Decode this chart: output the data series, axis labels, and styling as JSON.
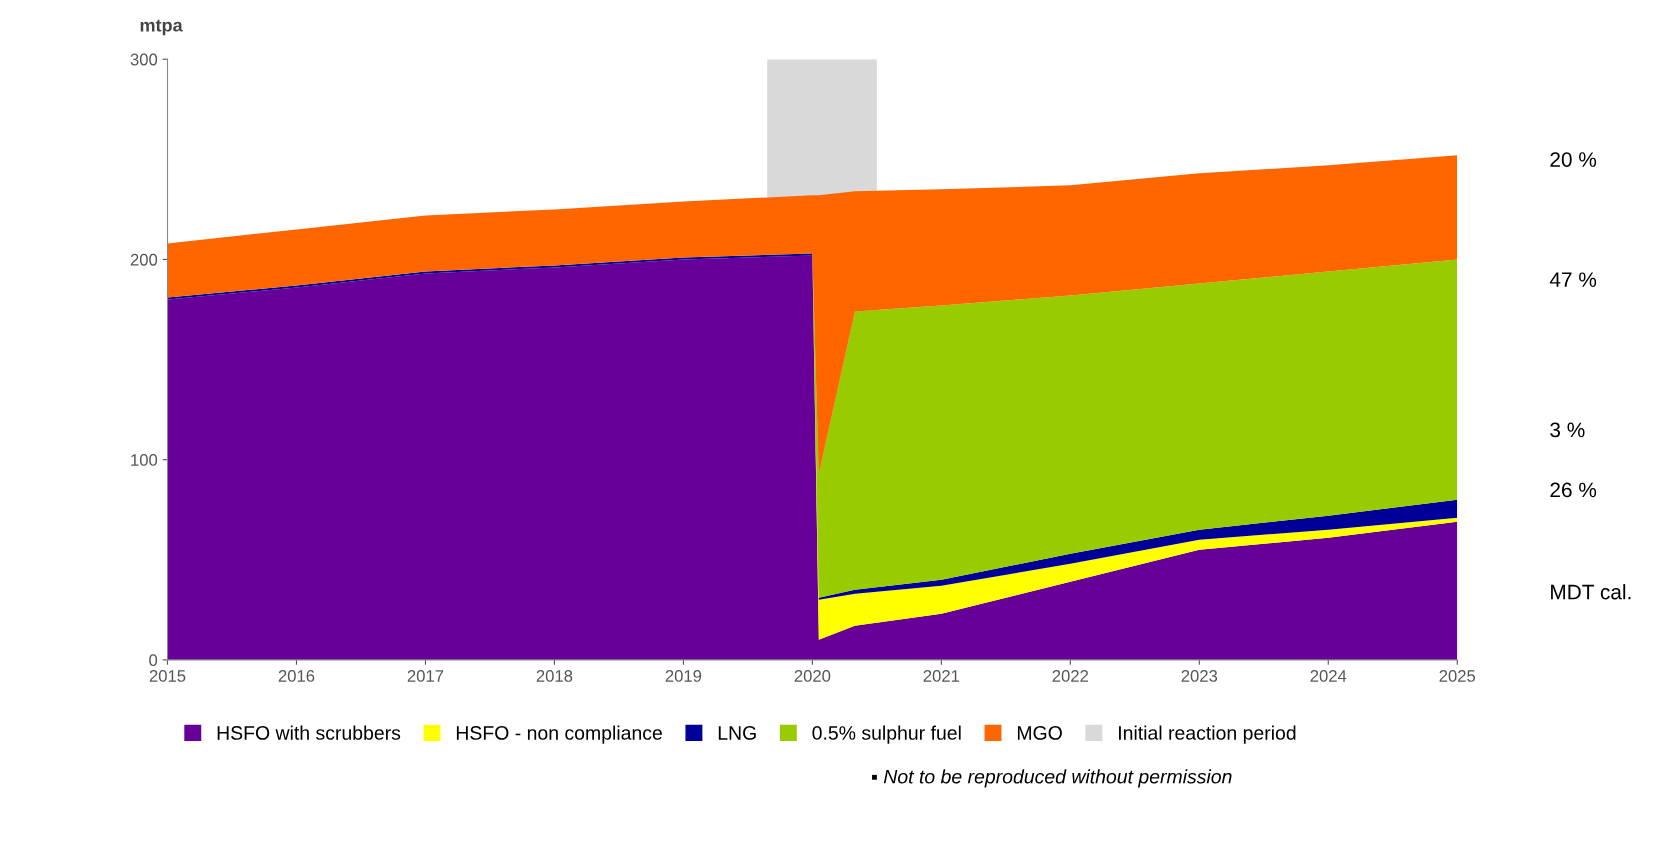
{
  "chart_data": {
    "type": "area",
    "stacked": true,
    "ylabel": "mtpa",
    "x": [
      2015,
      2016,
      2017,
      2018,
      2019,
      2020,
      2020.05,
      2020.33,
      2021,
      2022,
      2023,
      2024,
      2025
    ],
    "xlim": [
      2015,
      2025
    ],
    "xticks": [
      2015,
      2016,
      2017,
      2018,
      2019,
      2020,
      2021,
      2022,
      2023,
      2024,
      2025
    ],
    "ylim": [
      0,
      300
    ],
    "yticks": [
      0,
      100,
      200,
      300
    ],
    "series": [
      {
        "name": "HSFO with scrubbers",
        "color": "#660099",
        "values": [
          180,
          186,
          193,
          196,
          200,
          202,
          10,
          17,
          23,
          39,
          55,
          61,
          69
        ]
      },
      {
        "name": "HSFO - non compliance",
        "color": "#ffff00",
        "values": [
          0,
          0,
          0,
          0,
          0,
          0,
          20,
          16,
          14,
          9,
          5,
          4,
          2
        ]
      },
      {
        "name": "LNG",
        "color": "#000099",
        "values": [
          1,
          1,
          1,
          1,
          1,
          1,
          1,
          2,
          3,
          5,
          5,
          7,
          9
        ]
      },
      {
        "name": "0.5% sulphur fuel",
        "color": "#99cc00",
        "values": [
          0,
          0,
          0,
          0,
          0,
          0,
          62,
          139,
          137,
          129,
          123,
          122,
          120
        ]
      },
      {
        "name": "MGO",
        "color": "#ff6600",
        "values": [
          27,
          28,
          28,
          28,
          28,
          29,
          139,
          60,
          58,
          55,
          55,
          53,
          52
        ]
      }
    ],
    "bands": [
      {
        "axis": "x",
        "from": 2019.65,
        "to": 2020.5,
        "label": "Initial reaction period",
        "color": "#d9d9d9"
      }
    ],
    "annotations": [
      "20 %",
      "47 %",
      "3 %",
      "26 %",
      "MDT cal.",
      "▪ Not to be reproduced without permission"
    ],
    "legend": "bottom",
    "grid": false
  }
}
